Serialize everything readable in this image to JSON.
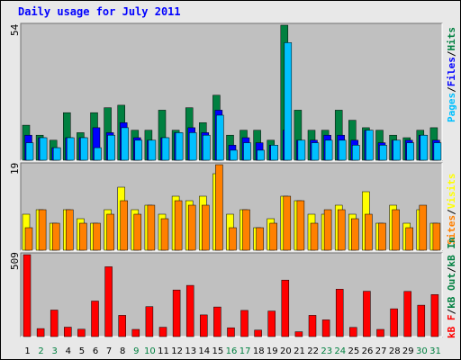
{
  "title": "Daily usage for July 2011",
  "chart_data": [
    {
      "type": "bar",
      "panel": "hits-files-pages",
      "max_label": "54",
      "ylim": [
        0,
        54
      ],
      "categories": [
        "1",
        "2",
        "3",
        "4",
        "5",
        "6",
        "7",
        "8",
        "9",
        "10",
        "11",
        "12",
        "13",
        "14",
        "15",
        "16",
        "17",
        "18",
        "19",
        "20",
        "21",
        "22",
        "23",
        "24",
        "25",
        "26",
        "27",
        "28",
        "29",
        "30",
        "31"
      ],
      "series": [
        {
          "name": "Hits",
          "color": "#008040",
          "values": [
            14,
            10,
            8,
            19,
            11,
            19,
            21,
            22,
            12,
            12,
            20,
            12,
            21,
            15,
            26,
            10,
            12,
            12,
            8,
            54,
            20,
            12,
            12,
            20,
            16,
            13,
            12,
            10,
            9,
            12,
            13
          ]
        },
        {
          "name": "Files",
          "color": "#0000ff",
          "values": [
            10,
            9,
            5,
            9,
            9,
            13,
            11,
            15,
            9,
            8,
            9,
            11,
            13,
            11,
            20,
            6,
            9,
            7,
            6,
            12,
            8,
            8,
            10,
            10,
            8,
            12,
            7,
            8,
            8,
            10,
            8
          ]
        },
        {
          "name": "Pages",
          "color": "#00c0ff",
          "values": [
            7,
            9,
            5,
            9,
            9,
            5,
            10,
            13,
            8,
            8,
            9,
            11,
            11,
            10,
            18,
            4,
            7,
            4,
            6,
            47,
            8,
            7,
            8,
            8,
            6,
            12,
            6,
            8,
            7,
            10,
            7
          ]
        }
      ],
      "legend": [
        "Pages",
        "Files",
        "Hits"
      ]
    },
    {
      "type": "bar",
      "panel": "visits-sites",
      "max_label": "19",
      "ylim": [
        0,
        19
      ],
      "categories": [
        "1",
        "2",
        "3",
        "4",
        "5",
        "6",
        "7",
        "8",
        "9",
        "10",
        "11",
        "12",
        "13",
        "14",
        "15",
        "16",
        "17",
        "18",
        "19",
        "20",
        "21",
        "22",
        "23",
        "24",
        "25",
        "26",
        "27",
        "28",
        "29",
        "30",
        "31"
      ],
      "series": [
        {
          "name": "Visits",
          "color": "#ffff00",
          "values": [
            8,
            9,
            6,
            9,
            7,
            6,
            9,
            14,
            9,
            10,
            8,
            12,
            11,
            12,
            17,
            8,
            9,
            5,
            7,
            12,
            11,
            8,
            8,
            10,
            8,
            13,
            6,
            10,
            6,
            9,
            6
          ]
        },
        {
          "name": "Sites",
          "color": "#ff8000",
          "values": [
            5,
            9,
            6,
            9,
            6,
            6,
            8,
            11,
            8,
            10,
            7,
            11,
            10,
            10,
            19,
            5,
            9,
            5,
            6,
            12,
            11,
            6,
            9,
            9,
            7,
            8,
            6,
            9,
            5,
            10,
            6
          ]
        }
      ],
      "legend": [
        "Sites",
        "Visits"
      ]
    },
    {
      "type": "bar",
      "panel": "kbytes",
      "max_label": "509",
      "ylim": [
        0,
        509
      ],
      "categories": [
        "1",
        "2",
        "3",
        "4",
        "5",
        "6",
        "7",
        "8",
        "9",
        "10",
        "11",
        "12",
        "13",
        "14",
        "15",
        "16",
        "17",
        "18",
        "19",
        "20",
        "21",
        "22",
        "23",
        "24",
        "25",
        "26",
        "27",
        "28",
        "29",
        "30",
        "31"
      ],
      "series": [
        {
          "name": "KBytes",
          "color": "#ff0000",
          "values": [
            509,
            50,
            165,
            59,
            46,
            221,
            434,
            132,
            45,
            186,
            58,
            290,
            318,
            135,
            184,
            55,
            163,
            40,
            159,
            351,
            30,
            132,
            104,
            295,
            57,
            282,
            45,
            173,
            281,
            195,
            261
          ]
        }
      ],
      "legend": [
        "KBytes F",
        "KBytes Out",
        "KBytes In"
      ],
      "legend_text": {
        "f": "kB F",
        "out": "kB Out",
        "in": "kB In"
      }
    }
  ],
  "x_label_colors": {
    "weekday": "#000000",
    "weekend": "#008040"
  },
  "weekend_days": [
    "2",
    "3",
    "9",
    "10",
    "16",
    "17",
    "23",
    "24",
    "30",
    "31"
  ],
  "colors": {
    "panel_bg": "#c0c0c0",
    "frame_bg": "#e8e8e8",
    "title": "#0000ff"
  }
}
